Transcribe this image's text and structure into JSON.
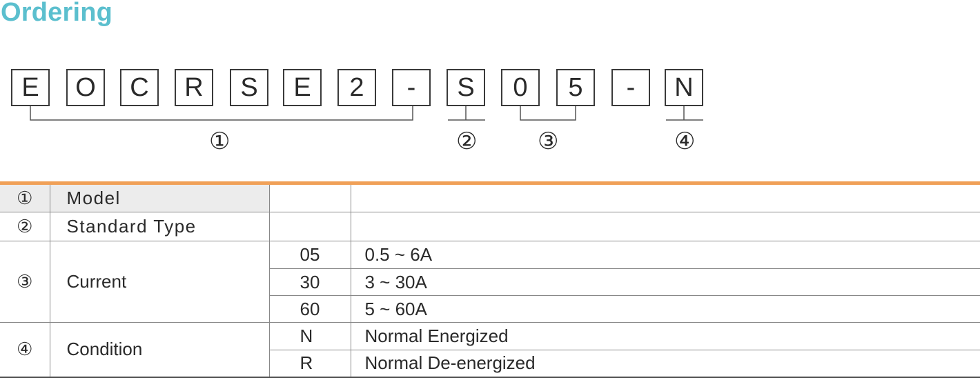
{
  "title": "Ordering",
  "code": [
    "E",
    "O",
    "C",
    "R",
    "S",
    "E",
    "2",
    "-",
    "S",
    "0",
    "5",
    "-",
    "N"
  ],
  "markers": [
    "①",
    "②",
    "③",
    "④"
  ],
  "table": {
    "rows": [
      {
        "num": "①",
        "label": "Model",
        "code": "",
        "desc": ""
      },
      {
        "num": "②",
        "label": "Standard Type",
        "code": "",
        "desc": ""
      },
      {
        "num": "③",
        "label": "Current",
        "sub": [
          {
            "code": "05",
            "desc": "0.5 ~ 6A"
          },
          {
            "code": "30",
            "desc": "3 ~ 30A"
          },
          {
            "code": "60",
            "desc": "5 ~ 60A"
          }
        ]
      },
      {
        "num": "④",
        "label": "Condition",
        "sub": [
          {
            "code": "N",
            "desc": "Normal Energized"
          },
          {
            "code": "R",
            "desc": "Normal De-energized"
          }
        ]
      }
    ]
  }
}
